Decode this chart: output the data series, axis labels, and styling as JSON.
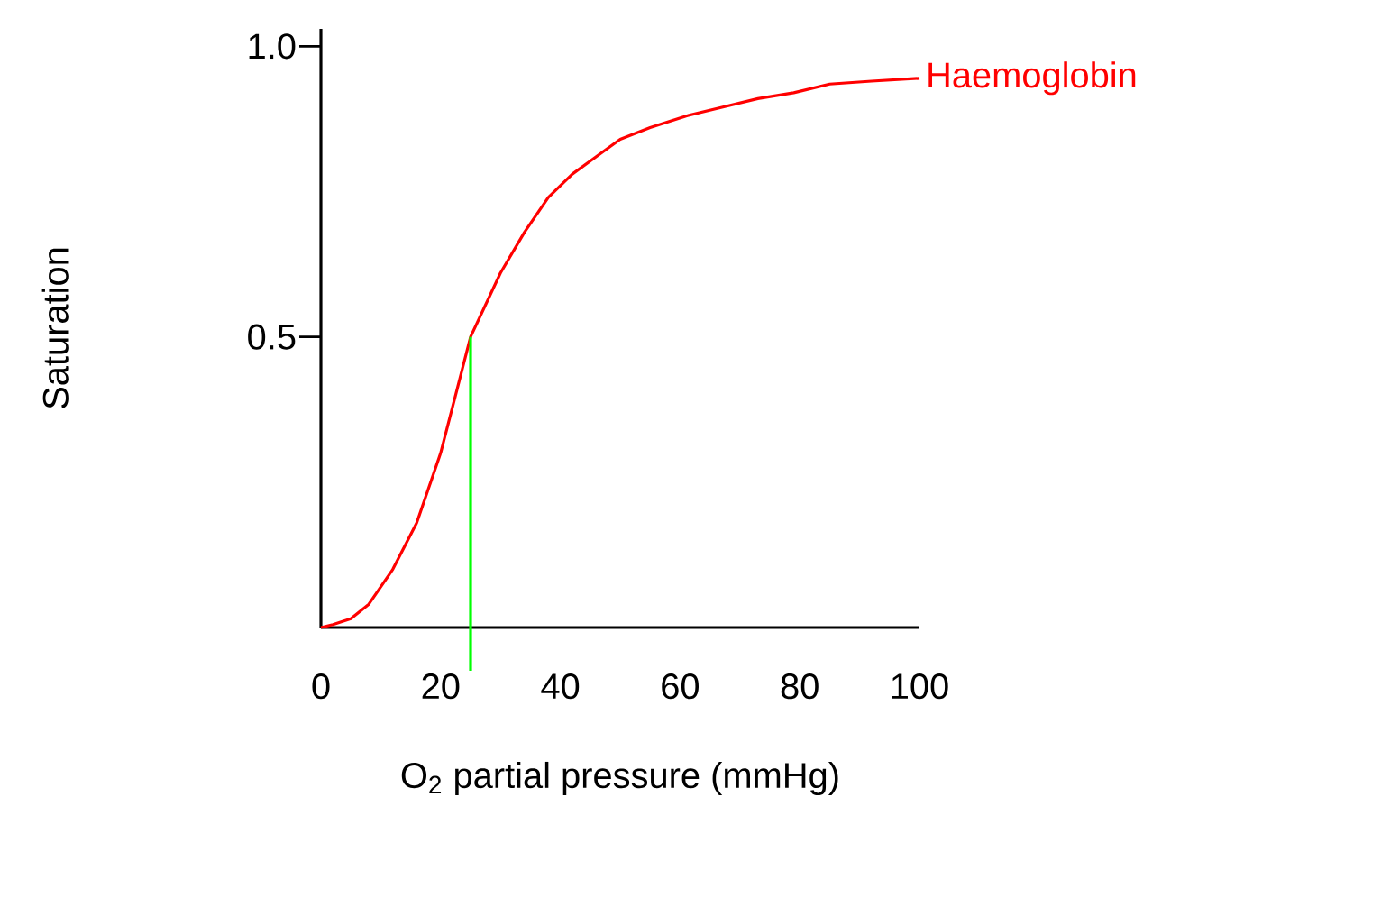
{
  "chart_data": {
    "type": "line",
    "xlabel": "O$_{2}$ partial pressure (mmHg)",
    "ylabel": "Saturation",
    "series": [
      {
        "name": "Haemoglobin",
        "color": "#ff0000",
        "x": [
          0,
          2,
          5,
          8,
          12,
          16,
          20,
          25,
          30,
          34,
          38,
          42,
          46,
          50,
          55,
          61,
          67,
          73,
          79,
          85,
          92,
          100
        ],
        "values": [
          0,
          0.005,
          0.015,
          0.04,
          0.1,
          0.18,
          0.3,
          0.5,
          0.61,
          0.68,
          0.74,
          0.78,
          0.81,
          0.84,
          0.86,
          0.88,
          0.895,
          0.91,
          0.92,
          0.935,
          0.94,
          0.945
        ]
      }
    ],
    "xlim": [
      0,
      100
    ],
    "ylim": [
      0,
      1.03
    ],
    "xticks": [
      0,
      20,
      40,
      60,
      80,
      100
    ],
    "yticks": [
      {
        "value": 0.5,
        "label": "0.5"
      },
      {
        "value": 1,
        "label": "1.0"
      }
    ],
    "ref_lines": [
      {
        "axis": "x",
        "value": 25,
        "color": "#00ff00"
      }
    ],
    "grid": false,
    "legend": false,
    "marker": "none",
    "line_style": "solid"
  }
}
